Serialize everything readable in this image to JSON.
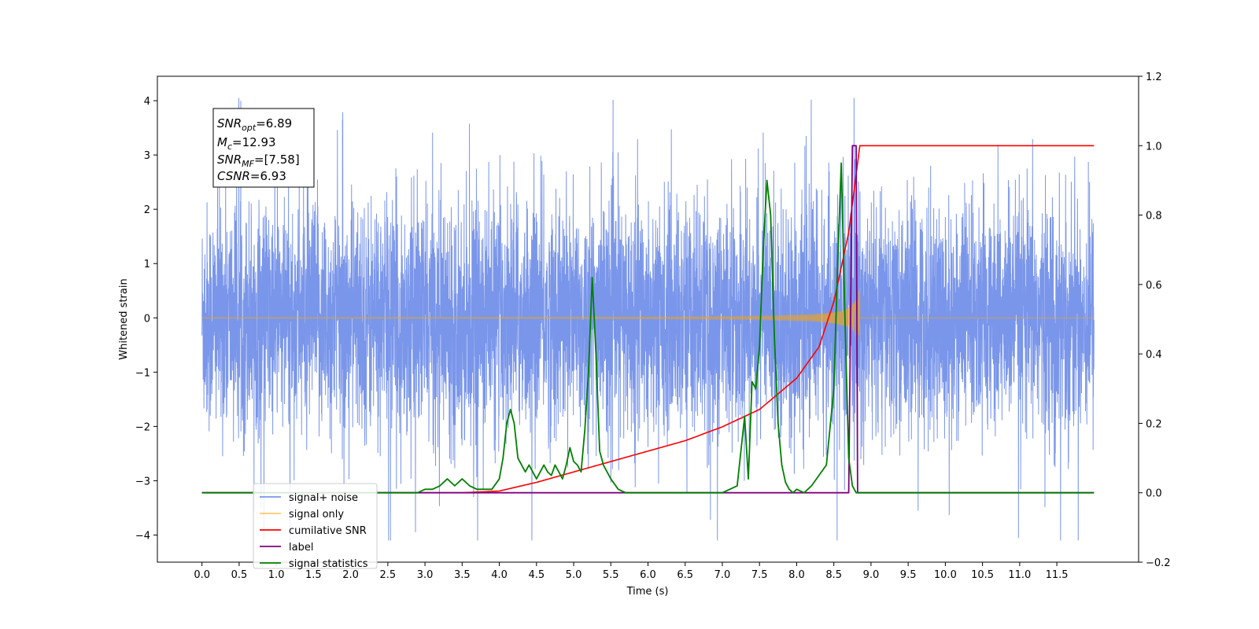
{
  "chart_data": {
    "type": "line",
    "title": "",
    "xlabel": "Time (s)",
    "ylabel": "Whitened strain",
    "ylabel_right": "",
    "xlim": [
      -0.6,
      12.6
    ],
    "ylim": [
      -4.5,
      4.45
    ],
    "ylim_right": [
      -0.2,
      1.2
    ],
    "x_ticks": [
      "0.0",
      "0.5",
      "1.0",
      "1.5",
      "2.0",
      "2.5",
      "3.0",
      "3.5",
      "4.0",
      "4.5",
      "5.0",
      "5.5",
      "6.0",
      "6.5",
      "7.0",
      "7.5",
      "8.0",
      "8.5",
      "9.0",
      "9.5",
      "10.0",
      "10.5",
      "11.0",
      "11.5"
    ],
    "y_ticks": [
      "−4",
      "−3",
      "−2",
      "−1",
      "0",
      "1",
      "2",
      "3",
      "4"
    ],
    "y_ticks_right": [
      "−0.2",
      "0.0",
      "0.2",
      "0.4",
      "0.6",
      "0.8",
      "1.0",
      "1.2"
    ],
    "grid": false,
    "legend_position": "lower-left",
    "info_box": {
      "line1": "SNR",
      "line1_sub": "opt",
      "line1_val": "=6.89",
      "line2": "M",
      "line2_sub": "c",
      "line2_val": "=12.93",
      "line3": "SNR",
      "line3_sub": "MF",
      "line3_val": "=[7.58]",
      "line4": "CSNR",
      "line4_val": "=6.93"
    },
    "series": [
      {
        "name": "signal+ noise",
        "color": "#4169e1",
        "axis": "left",
        "description_range": [
          -3.0,
          3.0
        ],
        "x_range": [
          0.0,
          12.0
        ]
      },
      {
        "name": "signal only",
        "color": "#ffa500",
        "axis": "left",
        "chirp_peak_time": 8.85,
        "peak_amplitude": 0.6
      },
      {
        "name": "cumilative SNR",
        "color": "#ff0000",
        "axis": "right",
        "x": [
          0.0,
          3.5,
          4.0,
          4.5,
          5.0,
          5.5,
          6.0,
          6.5,
          7.0,
          7.5,
          8.0,
          8.3,
          8.5,
          8.7,
          8.85,
          9.0,
          10.0,
          11.0,
          12.0
        ],
        "y": [
          0.0,
          0.0,
          0.005,
          0.03,
          0.06,
          0.09,
          0.12,
          0.15,
          0.19,
          0.24,
          0.33,
          0.42,
          0.55,
          0.75,
          1.0,
          1.0,
          1.0,
          1.0,
          1.0
        ]
      },
      {
        "name": "label",
        "color": "#800080",
        "axis": "right",
        "x": [
          0.0,
          8.7,
          8.75,
          8.8,
          8.82,
          12.0
        ],
        "y": [
          0.0,
          0.0,
          1.0,
          1.0,
          0.0,
          0.0
        ]
      },
      {
        "name": "signal statistics",
        "color": "#008000",
        "axis": "right",
        "x": [
          0.0,
          2.9,
          3.0,
          3.1,
          3.2,
          3.3,
          3.4,
          3.5,
          3.6,
          3.7,
          3.8,
          3.9,
          4.0,
          4.05,
          4.1,
          4.15,
          4.2,
          4.25,
          4.3,
          4.35,
          4.4,
          4.5,
          4.55,
          4.6,
          4.65,
          4.7,
          4.75,
          4.8,
          4.85,
          4.9,
          4.95,
          5.0,
          5.05,
          5.1,
          5.15,
          5.2,
          5.25,
          5.3,
          5.35,
          5.4,
          5.5,
          5.6,
          5.7,
          5.8,
          6.0,
          6.2,
          6.5,
          7.0,
          7.1,
          7.2,
          7.3,
          7.35,
          7.4,
          7.45,
          7.5,
          7.55,
          7.6,
          7.65,
          7.7,
          7.75,
          7.8,
          7.85,
          7.9,
          7.95,
          8.0,
          8.1,
          8.2,
          8.3,
          8.4,
          8.5,
          8.55,
          8.6,
          8.65,
          8.7,
          8.75,
          8.8,
          8.85,
          8.9,
          9.0,
          12.0
        ],
        "y": [
          0.0,
          0.0,
          0.01,
          0.01,
          0.02,
          0.04,
          0.02,
          0.04,
          0.02,
          0.01,
          0.01,
          0.01,
          0.04,
          0.1,
          0.2,
          0.24,
          0.2,
          0.1,
          0.08,
          0.06,
          0.08,
          0.04,
          0.06,
          0.08,
          0.06,
          0.05,
          0.08,
          0.06,
          0.04,
          0.08,
          0.13,
          0.09,
          0.08,
          0.06,
          0.18,
          0.35,
          0.62,
          0.4,
          0.12,
          0.08,
          0.04,
          0.01,
          0.0,
          0.0,
          0.0,
          0.0,
          0.0,
          0.0,
          0.01,
          0.02,
          0.22,
          0.04,
          0.32,
          0.3,
          0.42,
          0.7,
          0.9,
          0.8,
          0.45,
          0.2,
          0.08,
          0.03,
          0.01,
          0.0,
          0.01,
          0.0,
          0.02,
          0.05,
          0.08,
          0.3,
          0.65,
          0.95,
          0.5,
          0.1,
          0.02,
          0.0,
          0.0,
          0.0,
          0.0,
          0.0
        ]
      }
    ]
  }
}
